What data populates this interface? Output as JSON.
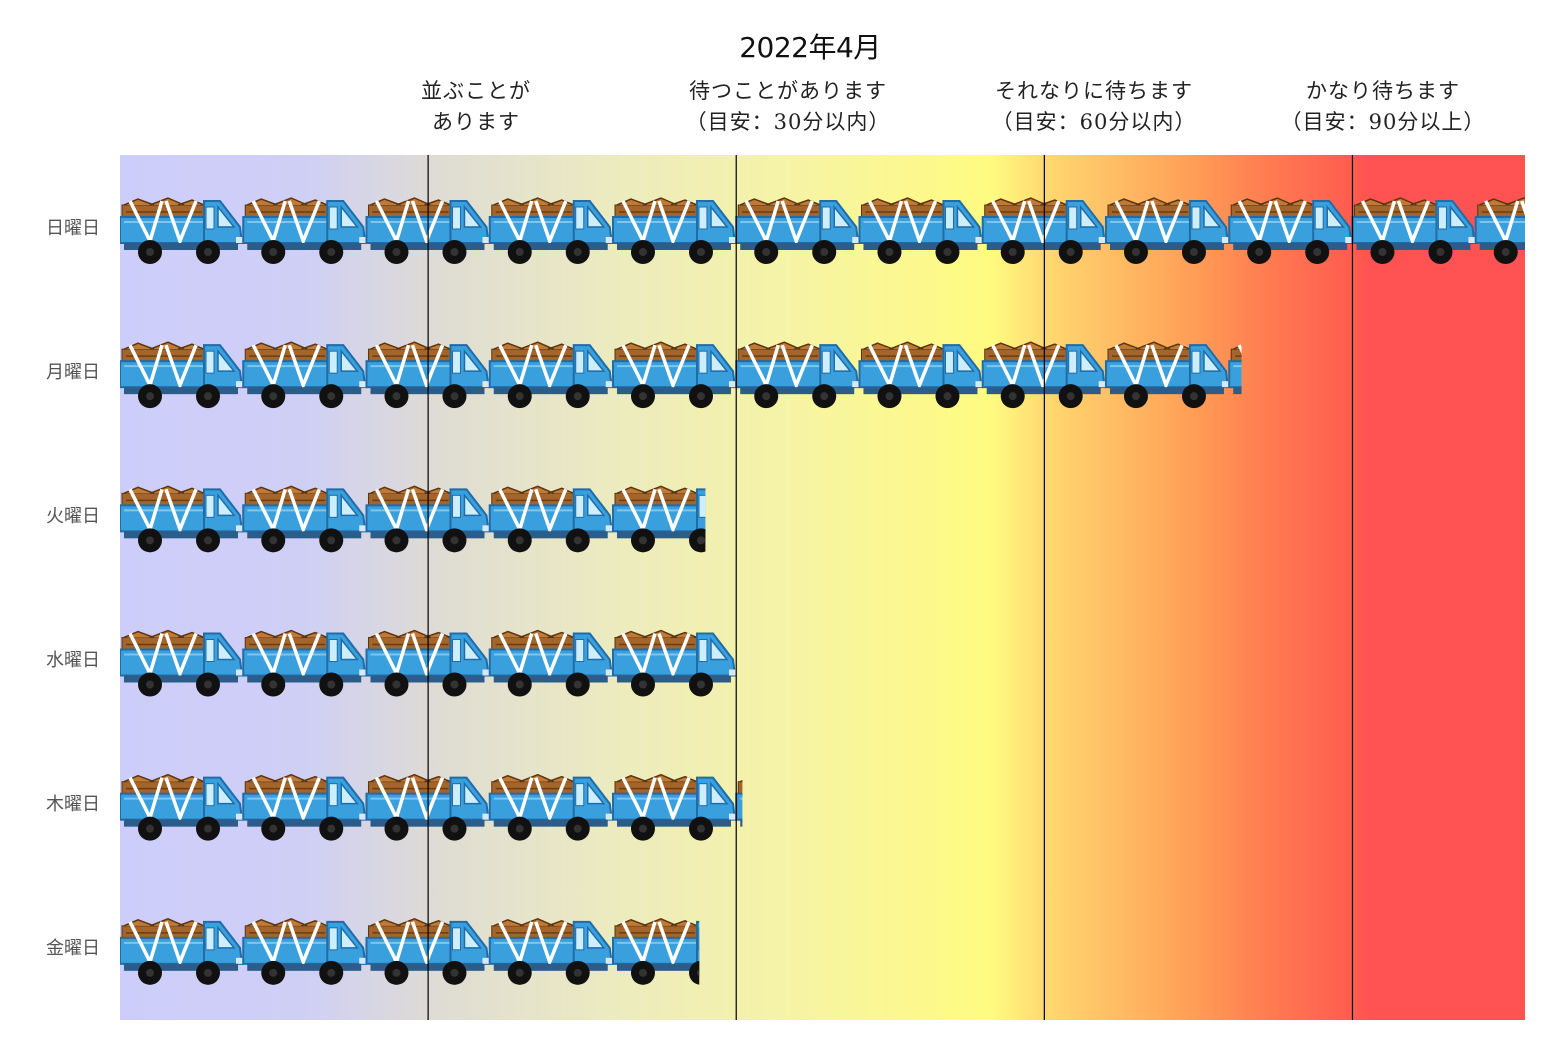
{
  "chart_data": {
    "type": "bar",
    "orientation": "horizontal",
    "title": "2022年4月",
    "categories": [
      "日曜日",
      "月曜日",
      "火曜日",
      "水曜日",
      "木曜日",
      "金曜日"
    ],
    "values": [
      11.4,
      9.1,
      4.75,
      5.0,
      5.05,
      4.7
    ],
    "xlim": [
      0,
      11.4
    ],
    "zones": [
      {
        "threshold": 2.5,
        "label": [
          "並ぶことが",
          "あります"
        ]
      },
      {
        "threshold": 5.0,
        "label": [
          "待つことがあります",
          "（目安：30分以内）"
        ]
      },
      {
        "threshold": 7.5,
        "label": [
          "それなりに待ちます",
          "（目安：60分以内）"
        ]
      },
      {
        "threshold": 10.0,
        "label": [
          "かなり待ちます",
          "（目安：90分以上）"
        ]
      }
    ],
    "mark_icon": "truck-icon",
    "grid": false,
    "legend": "none"
  },
  "colors": {
    "truck_body": "#3a9fdd",
    "truck_cargo": "#a3652a",
    "truck_wheel": "#111111",
    "zone_low": "#cdcdfb",
    "zone_mid": "#fffb80",
    "zone_high": "#ff5252"
  }
}
